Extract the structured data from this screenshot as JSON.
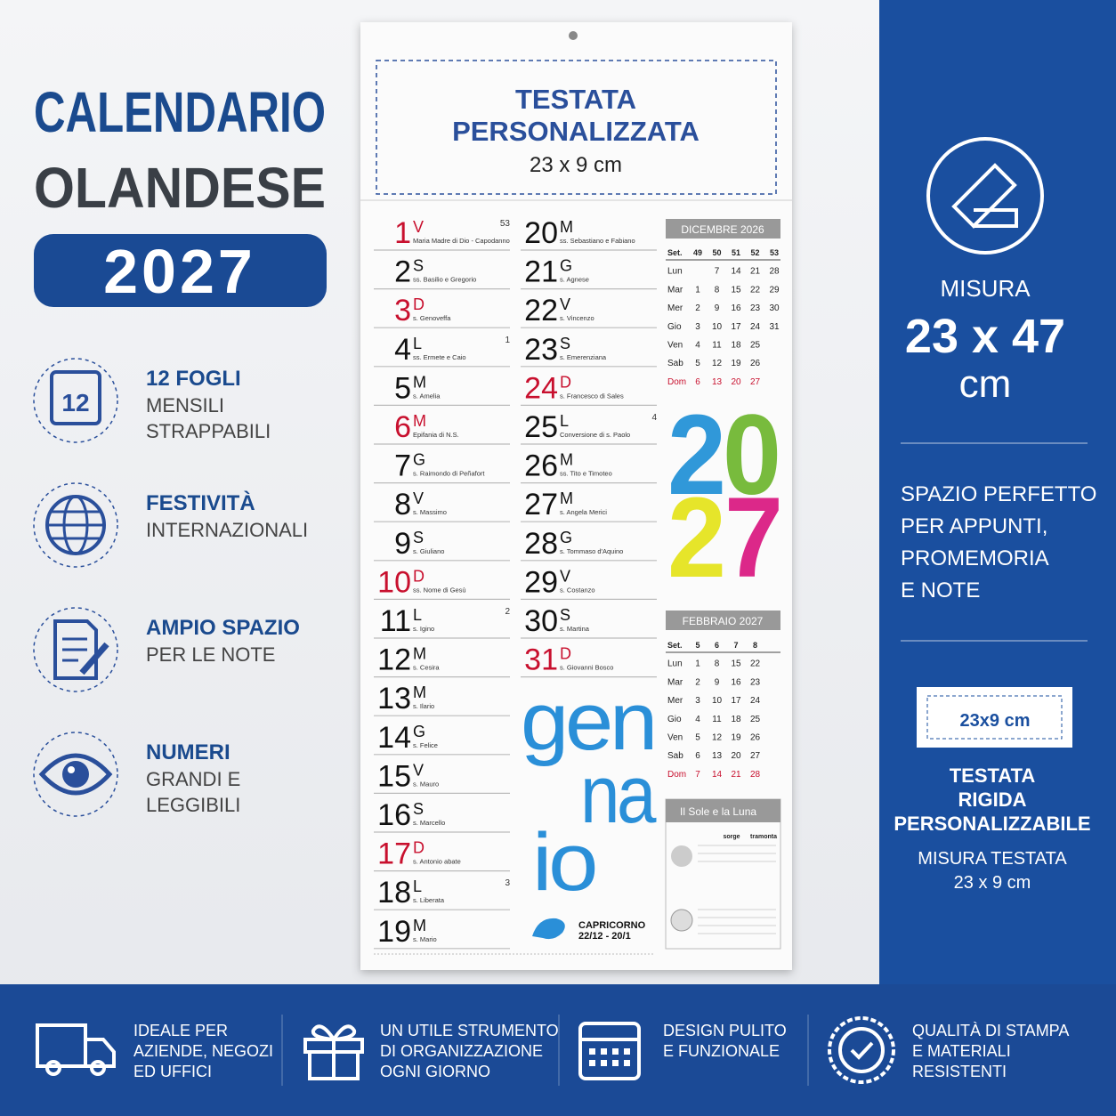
{
  "title": {
    "lines": [
      "CALENDARIO",
      "OLANDESE"
    ],
    "year": "2027"
  },
  "features": [
    {
      "title": "12 FOGLI",
      "lines": [
        "MENSILI",
        "STRAPPABILI"
      ],
      "icon_label": "12"
    },
    {
      "title": "FESTIVITÀ",
      "lines": [
        "INTERNAZIONALI"
      ]
    },
    {
      "title": "AMPIO SPAZIO",
      "lines": [
        "PER LE NOTE"
      ]
    },
    {
      "title": "NUMERI",
      "lines": [
        "GRANDI E",
        "LEGGIBILI"
      ]
    }
  ],
  "calendar": {
    "header": [
      "TESTATA",
      "PERSONALIZZATA",
      "23 x 9 cm"
    ],
    "days": [
      {
        "n": "1",
        "d": "V",
        "s": "Maria Madre di Dio - Capodanno",
        "red": true,
        "week": "53"
      },
      {
        "n": "2",
        "d": "S",
        "s": "ss. Basilio e Gregorio"
      },
      {
        "n": "3",
        "d": "D",
        "s": "s. Genoveffa",
        "red": true
      },
      {
        "n": "4",
        "d": "L",
        "s": "ss. Ermete e Caio",
        "week": "1"
      },
      {
        "n": "5",
        "d": "M",
        "s": "s. Amelia"
      },
      {
        "n": "6",
        "d": "M",
        "s": "Epifania di N.S.",
        "red": true
      },
      {
        "n": "7",
        "d": "G",
        "s": "s. Raimondo di Peñafort"
      },
      {
        "n": "8",
        "d": "V",
        "s": "s. Massimo"
      },
      {
        "n": "9",
        "d": "S",
        "s": "s. Giuliano"
      },
      {
        "n": "10",
        "d": "D",
        "s": "ss. Nome di Gesù",
        "red": true
      },
      {
        "n": "11",
        "d": "L",
        "s": "s. Igino",
        "week": "2"
      },
      {
        "n": "12",
        "d": "M",
        "s": "s. Cesira"
      },
      {
        "n": "13",
        "d": "M",
        "s": "s. Ilario"
      },
      {
        "n": "14",
        "d": "G",
        "s": "s. Felice"
      },
      {
        "n": "15",
        "d": "V",
        "s": "s. Mauro"
      },
      {
        "n": "16",
        "d": "S",
        "s": "s. Marcello"
      },
      {
        "n": "17",
        "d": "D",
        "s": "s. Antonio abate",
        "red": true
      },
      {
        "n": "18",
        "d": "L",
        "s": "s. Liberata",
        "week": "3"
      },
      {
        "n": "19",
        "d": "M",
        "s": "s. Mario"
      },
      {
        "n": "20",
        "d": "M",
        "s": "ss. Sebastiano e Fabiano"
      },
      {
        "n": "21",
        "d": "G",
        "s": "s. Agnese"
      },
      {
        "n": "22",
        "d": "V",
        "s": "s. Vincenzo"
      },
      {
        "n": "23",
        "d": "S",
        "s": "s. Emerenziana"
      },
      {
        "n": "24",
        "d": "D",
        "s": "s. Francesco di Sales",
        "red": true
      },
      {
        "n": "25",
        "d": "L",
        "s": "Conversione di s. Paolo",
        "week": "4"
      },
      {
        "n": "26",
        "d": "M",
        "s": "ss. Tito e Timoteo"
      },
      {
        "n": "27",
        "d": "M",
        "s": "s. Angela Merici"
      },
      {
        "n": "28",
        "d": "G",
        "s": "s. Tommaso d'Aquino"
      },
      {
        "n": "29",
        "d": "V",
        "s": "s. Costanzo"
      },
      {
        "n": "30",
        "d": "S",
        "s": "s. Martina"
      },
      {
        "n": "31",
        "d": "D",
        "s": "s. Giovanni Bosco",
        "red": true
      }
    ],
    "big_year": [
      "2",
      "0",
      "2",
      "7"
    ],
    "big_year_colors": [
      "#1e8fd6",
      "#6cb52d",
      "#e4e318",
      "#d9167f"
    ],
    "month": [
      "gen",
      "na",
      "io"
    ],
    "mini": [
      {
        "title": "DICEMBRE 2026",
        "rows": [
          {
            "label": "Set.",
            "cells": [
              "49",
              "50",
              "51",
              "52",
              "53"
            ]
          },
          {
            "label": "Lun",
            "cells": [
              null,
              "7",
              "14",
              "21",
              "28"
            ]
          },
          {
            "label": "Mar",
            "cells": [
              "1",
              "8",
              "15",
              "22",
              "29"
            ]
          },
          {
            "label": "Mer",
            "cells": [
              "2",
              "9",
              "16",
              "23",
              "30"
            ]
          },
          {
            "label": "Gio",
            "cells": [
              "3",
              "10",
              "17",
              "24",
              "31"
            ]
          },
          {
            "label": "Ven",
            "cells": [
              "4",
              "11",
              "18",
              "25"
            ]
          },
          {
            "label": "Sab",
            "cells": [
              "5",
              "12",
              "19",
              "26"
            ]
          },
          {
            "label": "Dom",
            "cells": [
              "6",
              "13",
              "20",
              "27"
            ],
            "red": true
          }
        ]
      },
      {
        "title": "FEBBRAIO 2027",
        "rows": [
          {
            "label": "Set.",
            "cells": [
              "5",
              "6",
              "7",
              "8"
            ]
          },
          {
            "label": "Lun",
            "cells": [
              "1",
              "8",
              "15",
              "22"
            ]
          },
          {
            "label": "Mar",
            "cells": [
              "2",
              "9",
              "16",
              "23"
            ]
          },
          {
            "label": "Mer",
            "cells": [
              "3",
              "10",
              "17",
              "24"
            ]
          },
          {
            "label": "Gio",
            "cells": [
              "4",
              "11",
              "18",
              "25"
            ]
          },
          {
            "label": "Ven",
            "cells": [
              "5",
              "12",
              "19",
              "26"
            ]
          },
          {
            "label": "Sab",
            "cells": [
              "6",
              "13",
              "20",
              "27"
            ]
          },
          {
            "label": "Dom",
            "cells": [
              "7",
              "14",
              "21",
              "28"
            ],
            "red": true
          }
        ]
      }
    ],
    "sun_moon": {
      "title": "Il Sole e la Luna",
      "cols": [
        "sorge",
        "tramonta"
      ]
    },
    "zodiac": [
      "CAPRICORNO",
      "22/12 - 20/1"
    ]
  },
  "size": {
    "label": "MISURA",
    "value": "23 x 47",
    "unit": "cm"
  },
  "notes": [
    "SPAZIO PERFETTO",
    "PER APPUNTI,",
    "PROMEMORIA",
    "E NOTE"
  ],
  "header_badge": "23x9 cm",
  "header_info": {
    "title": [
      "TESTATA",
      "RIGIDA",
      "PERSONALIZZABILE"
    ],
    "size": [
      "MISURA TESTATA",
      "23 x 9 cm"
    ]
  },
  "benefits": [
    {
      "lines": [
        "IDEALE PER",
        "AZIENDE, NEGOZI",
        "ED UFFICI"
      ]
    },
    {
      "lines": [
        "UN UTILE STRUMENTO",
        "DI ORGANIZZAZIONE",
        "OGNI GIORNO"
      ]
    },
    {
      "lines": [
        "DESIGN PULITO",
        "E FUNZIONALE"
      ]
    },
    {
      "lines": [
        "QUALITÀ DI STAMPA",
        "E MATERIALI",
        "RESISTENTI"
      ]
    }
  ]
}
